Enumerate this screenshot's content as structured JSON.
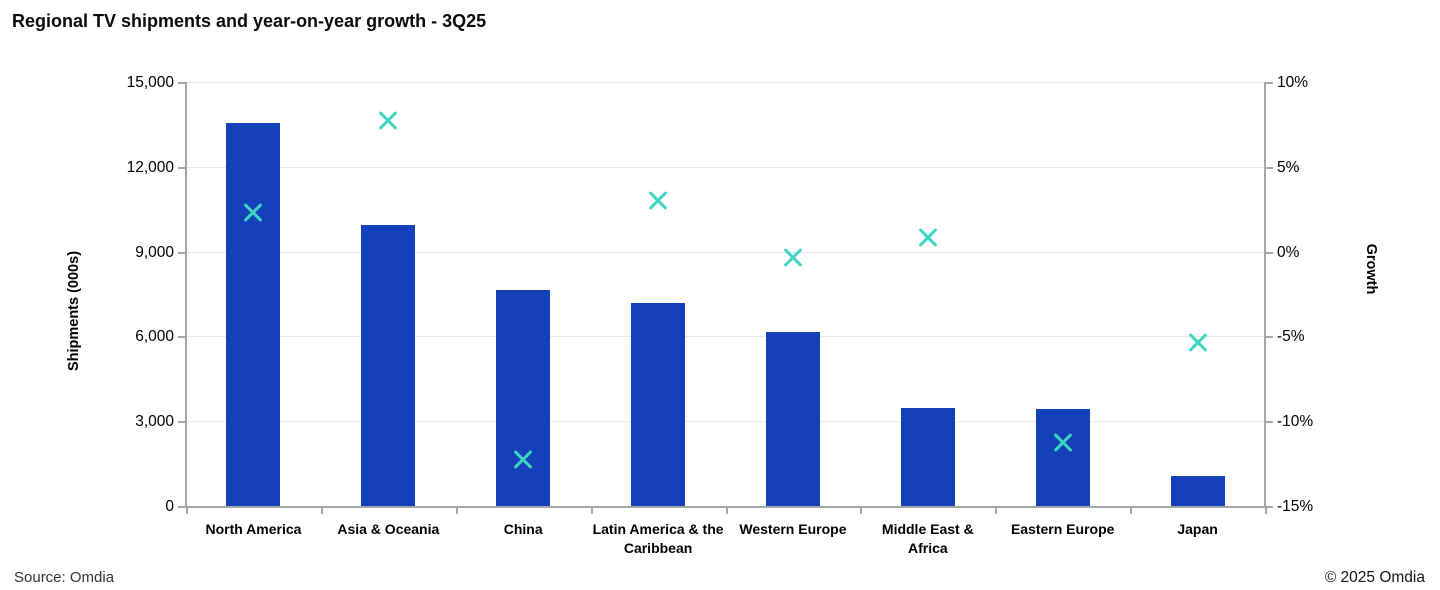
{
  "page": {
    "footer": {
      "source": "Source: Omdia",
      "copyright": "© 2025 Omdia"
    }
  },
  "chart_data": {
    "type": "combo-bar-scatter",
    "title": "Regional TV shipments and year-on-year growth - 3Q25",
    "categories": [
      "North America",
      "Asia & Oceania",
      "China",
      "Latin America & the Caribbean",
      "Western Europe",
      "Middle East & Africa",
      "Eastern Europe",
      "Japan"
    ],
    "category_label_lines": [
      [
        "North America"
      ],
      [
        "Asia & Oceania"
      ],
      [
        "China"
      ],
      [
        "Latin America & the",
        "Caribbean"
      ],
      [
        "Western Europe"
      ],
      [
        "Middle East &",
        "Africa"
      ],
      [
        "Eastern Europe"
      ],
      [
        "Japan"
      ]
    ],
    "series": [
      {
        "name": "Shipments (000s)",
        "type": "bar",
        "axis": "left",
        "color": "#1441b9",
        "values": [
          13550,
          9930,
          7640,
          7170,
          6160,
          3470,
          3440,
          1060
        ]
      },
      {
        "name": "Growth",
        "type": "x-marker",
        "axis": "right",
        "color": "#3ed6c2",
        "values": [
          2.3,
          7.7,
          -12.3,
          3.0,
          -0.4,
          0.8,
          -11.3,
          -5.4
        ]
      }
    ],
    "left_axis": {
      "label": "Shipments (000s)",
      "min": 0,
      "max": 15000,
      "tick_labels": [
        "0",
        "3,000",
        "6,000",
        "9,000",
        "12,000",
        "15,000"
      ]
    },
    "right_axis": {
      "label": "Growth",
      "min": -15,
      "max": 10,
      "tick_labels": [
        "-15%",
        "-10%",
        "-5%",
        "0%",
        "5%",
        "10%"
      ]
    },
    "grid": true,
    "legend": "none"
  }
}
